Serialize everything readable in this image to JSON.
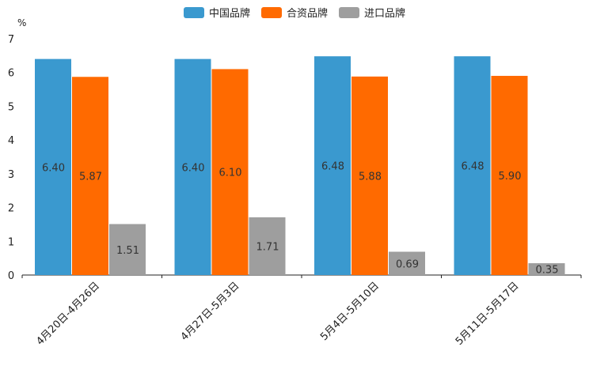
{
  "chart_data": {
    "type": "bar",
    "title": "",
    "ylabel": "%",
    "xlabel": "",
    "ylim": [
      0,
      7
    ],
    "yticks": [
      "0",
      "1",
      "2",
      "3",
      "4",
      "5",
      "6",
      "7"
    ],
    "categories": [
      "4月20日-4月26日",
      "4月27日-5月3日",
      "5月4日-5月10日",
      "5月11日-5月17日"
    ],
    "series": [
      {
        "name": "中国品牌",
        "color": "#3a99cf",
        "values": [
          6.4,
          6.4,
          6.48,
          6.48
        ],
        "labels": [
          "6.40",
          "6.40",
          "6.48",
          "6.48"
        ]
      },
      {
        "name": "合资品牌",
        "color": "#ff6a00",
        "values": [
          5.87,
          6.1,
          5.88,
          5.9
        ],
        "labels": [
          "5.87",
          "6.10",
          "5.88",
          "5.90"
        ]
      },
      {
        "name": "进口品牌",
        "color": "#9e9e9e",
        "values": [
          1.51,
          1.71,
          0.69,
          0.35
        ],
        "labels": [
          "1.51",
          "1.71",
          "0.69",
          "0.35"
        ]
      }
    ],
    "legend_position": "top-center",
    "grid": false
  }
}
